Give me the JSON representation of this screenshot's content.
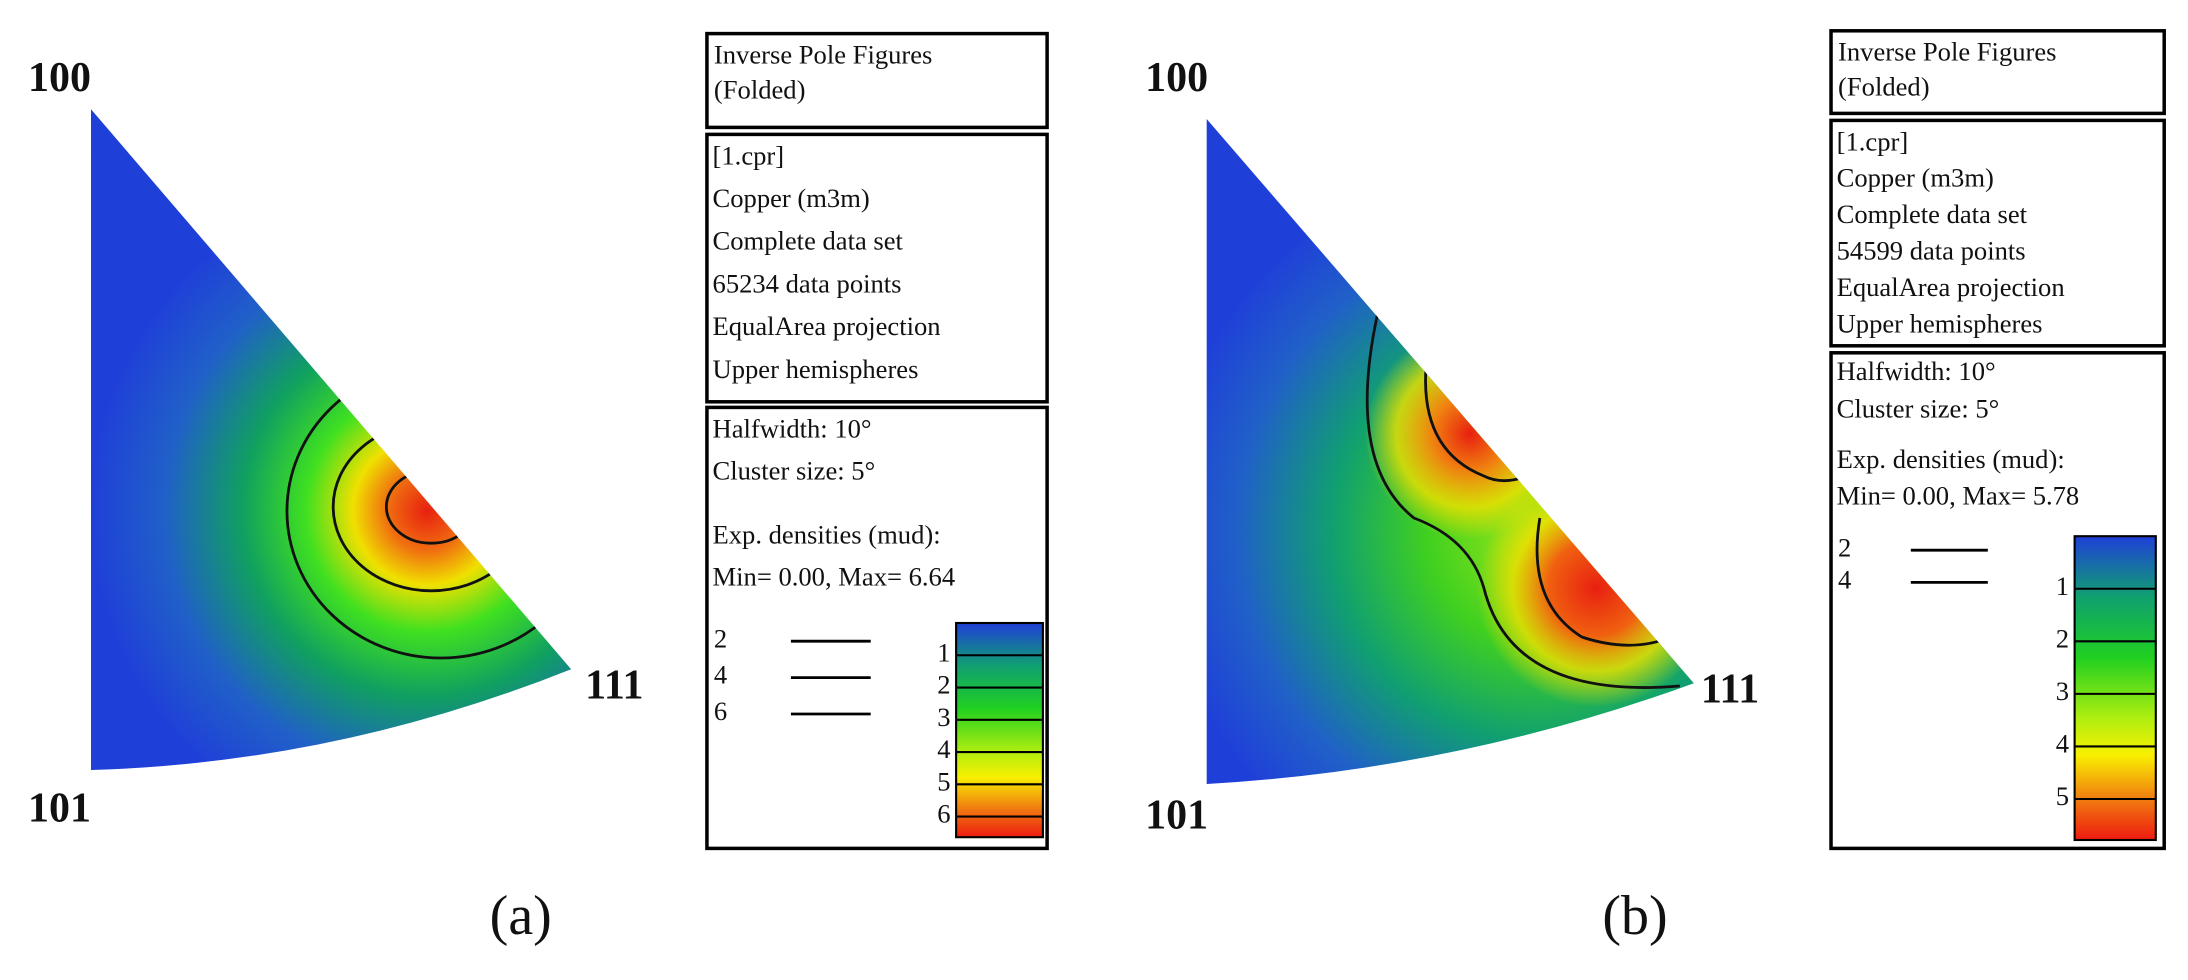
{
  "panels": [
    {
      "label": "(a)",
      "corners": [
        "100",
        "101",
        "111"
      ],
      "title": [
        "Inverse Pole Figures",
        "(Folded)"
      ],
      "info": [
        "[1.cpr]",
        "Copper (m3m)",
        "Complete data set",
        "65234 data points",
        "EqualArea projection",
        "Upper hemispheres"
      ],
      "params": [
        "Halfwidth: 10°",
        "Cluster size: 5°",
        "Exp. densities (mud):",
        "Min= 0.00, Max= 6.64"
      ],
      "max": 6.64,
      "contours": [
        2,
        4,
        6
      ],
      "colorbar": [
        1,
        2,
        3,
        4,
        5,
        6
      ]
    },
    {
      "label": "(b)",
      "corners": [
        "100",
        "101",
        "111"
      ],
      "title": [
        "Inverse Pole Figures",
        "(Folded)"
      ],
      "info": [
        "[1.cpr]",
        "Copper (m3m)",
        "Complete data set",
        "54599 data points",
        "EqualArea projection",
        "Upper hemispheres"
      ],
      "params": [
        "Halfwidth: 10°",
        "Cluster size: 5°",
        "Exp. densities (mud):",
        "Min= 0.00, Max= 5.78"
      ],
      "max": 5.78,
      "contours": [
        2,
        4
      ],
      "colorbar": [
        1,
        2,
        3,
        4,
        5
      ]
    }
  ]
}
